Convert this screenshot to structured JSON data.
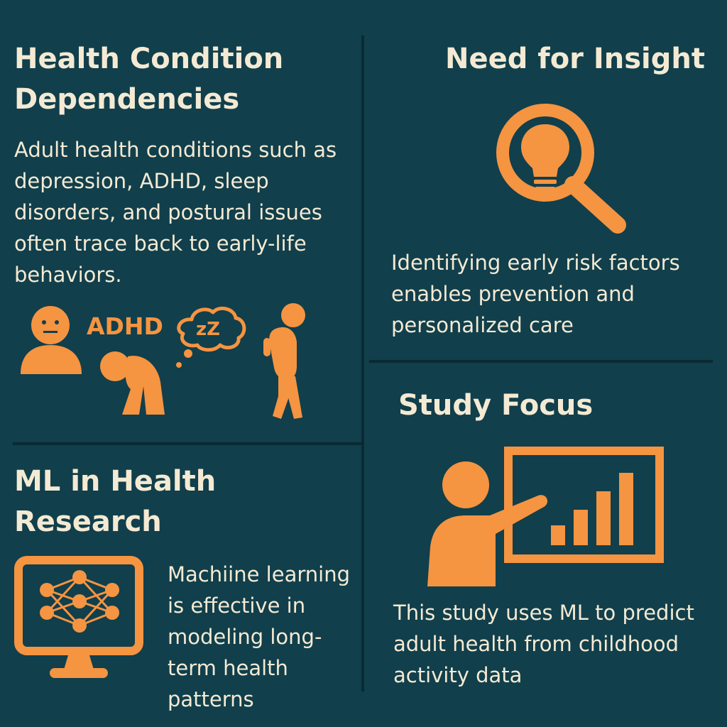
{
  "colors": {
    "background": "#113f4c",
    "accent": "#f59441",
    "text": "#f4ead3",
    "divider": "#0a2a33"
  },
  "sections": {
    "health_conditions": {
      "title_line1": "Health Condition",
      "title_line2": "Dependencies",
      "body_lines": [
        "Adult health conditions such as",
        "depression, ADHD, sleep",
        "disorders, and postural issues",
        "often trace back to early-life",
        "behaviors."
      ],
      "icon_label": "ADHD",
      "sleep_text": "zZ",
      "icons": [
        "sad-face-person-icon",
        "slouched-child-icon",
        "sleep-thought-bubble-icon",
        "hunched-walking-person-icon"
      ]
    },
    "need_for_insight": {
      "title": "Need for Insight",
      "body_lines": [
        "Identifying early risk factors",
        "enables prevention and",
        "personalized care"
      ],
      "icons": [
        "lightbulb-magnifier-icon"
      ]
    },
    "ml_research": {
      "title_line1": "ML in Health",
      "title_line2": "Research",
      "body_lines": [
        "Machiine learning",
        "is effective in",
        "modeling long-",
        "term health",
        "patterns"
      ],
      "icons": [
        "neural-network-monitor-icon"
      ]
    },
    "study_focus": {
      "title": "Study Focus",
      "body_lines": [
        "This study uses ML to predict",
        "adult health from childhood",
        "activity data"
      ],
      "icons": [
        "presenter-chart-icon"
      ]
    }
  }
}
